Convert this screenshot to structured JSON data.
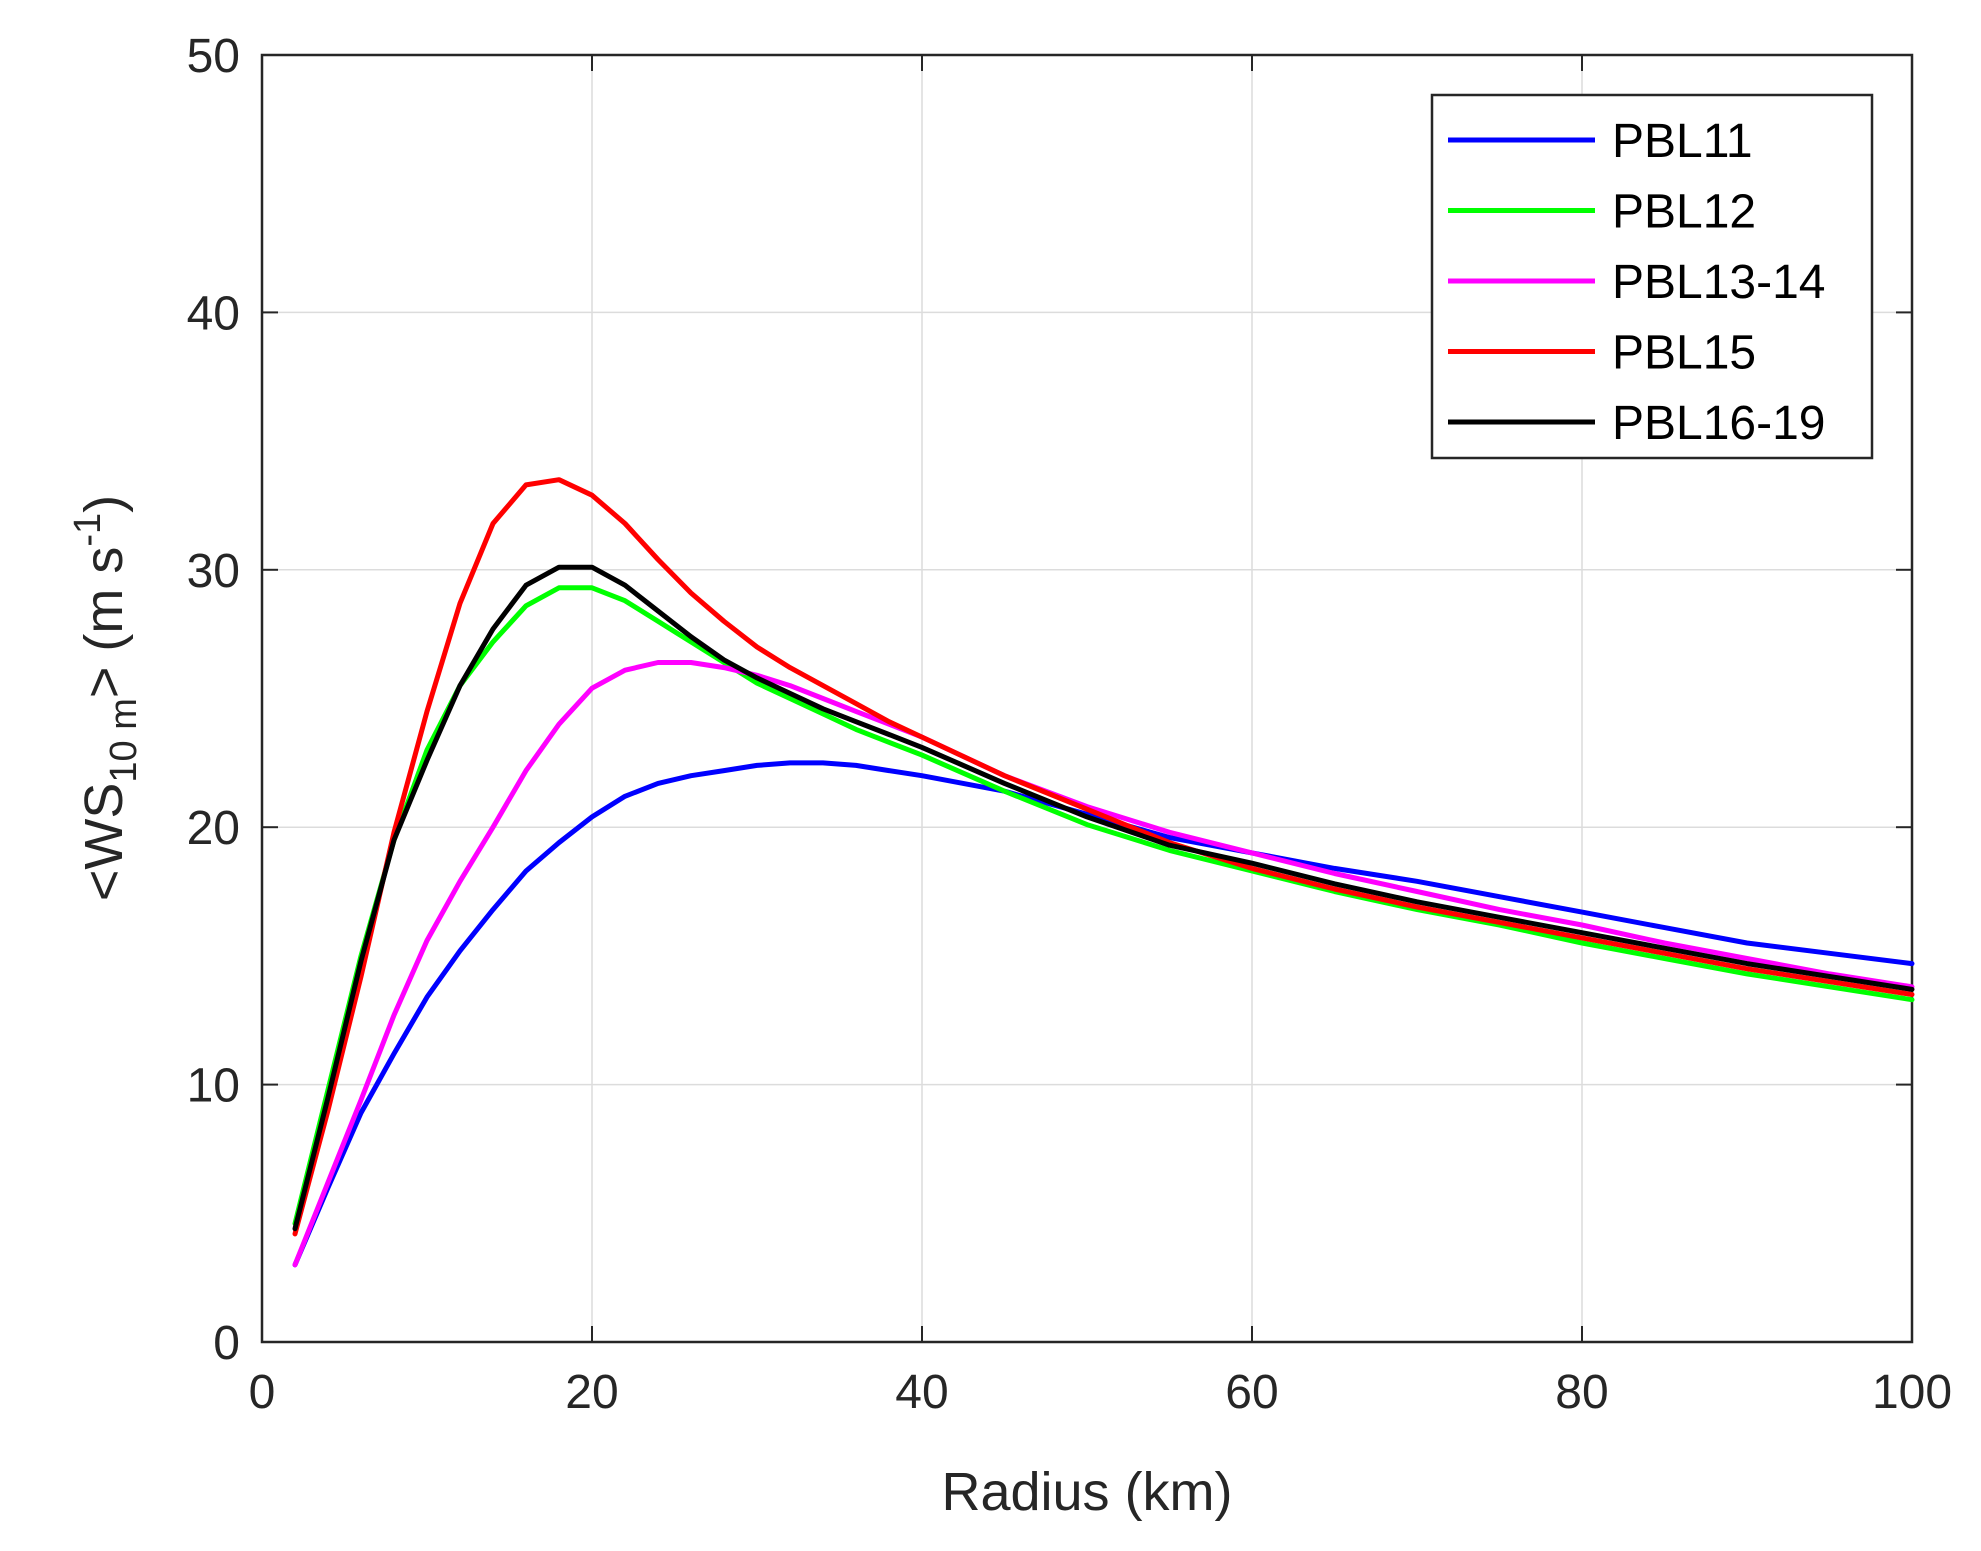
{
  "chart_data": {
    "type": "line",
    "xlabel": "Radius (km)",
    "ylabel": {
      "prefix": "<WS",
      "subscript": "10 m",
      "suffix": "> (m s",
      "superscript": "-1",
      "close": ")"
    },
    "xlim": [
      0,
      100
    ],
    "ylim": [
      0,
      50
    ],
    "xticks": [
      "0",
      "20",
      "40",
      "60",
      "80",
      "100"
    ],
    "yticks": [
      "0",
      "10",
      "20",
      "30",
      "40",
      "50"
    ],
    "grid": true,
    "legend_position": "top-right",
    "x": [
      2,
      4,
      6,
      8,
      10,
      12,
      14,
      16,
      18,
      20,
      22,
      24,
      26,
      28,
      30,
      32,
      34,
      36,
      38,
      40,
      45,
      50,
      55,
      60,
      65,
      70,
      75,
      80,
      85,
      90,
      95,
      100
    ],
    "series": [
      {
        "name": "PBL11",
        "color": "#0000ff",
        "values": [
          3.0,
          6.0,
          8.9,
          11.2,
          13.4,
          15.2,
          16.8,
          18.3,
          19.4,
          20.4,
          21.2,
          21.7,
          22.0,
          22.2,
          22.4,
          22.5,
          22.5,
          22.4,
          22.2,
          22.0,
          21.4,
          20.5,
          19.6,
          19.0,
          18.4,
          17.9,
          17.3,
          16.7,
          16.1,
          15.5,
          15.1,
          14.7
        ]
      },
      {
        "name": "PBL12",
        "color": "#00ff00",
        "values": [
          4.6,
          9.8,
          15.0,
          19.5,
          23.0,
          25.5,
          27.2,
          28.6,
          29.3,
          29.3,
          28.8,
          28.0,
          27.2,
          26.4,
          25.6,
          25.0,
          24.4,
          23.8,
          23.3,
          22.8,
          21.4,
          20.1,
          19.1,
          18.3,
          17.5,
          16.8,
          16.2,
          15.5,
          14.9,
          14.3,
          13.8,
          13.3
        ]
      },
      {
        "name": "PBL13-14",
        "color": "#ff00ff",
        "values": [
          3.0,
          6.2,
          9.4,
          12.7,
          15.6,
          17.9,
          20.0,
          22.2,
          24.0,
          25.4,
          26.1,
          26.4,
          26.4,
          26.2,
          25.9,
          25.5,
          25.0,
          24.5,
          24.0,
          23.5,
          22.0,
          20.8,
          19.8,
          19.0,
          18.2,
          17.5,
          16.8,
          16.2,
          15.5,
          14.9,
          14.3,
          13.8
        ]
      },
      {
        "name": "PBL15",
        "color": "#ff0000",
        "values": [
          4.2,
          9.0,
          14.2,
          19.8,
          24.5,
          28.7,
          31.8,
          33.3,
          33.5,
          32.9,
          31.8,
          30.4,
          29.1,
          28.0,
          27.0,
          26.2,
          25.5,
          24.8,
          24.1,
          23.5,
          22.0,
          20.7,
          19.4,
          18.4,
          17.6,
          16.9,
          16.3,
          15.7,
          15.1,
          14.5,
          14.0,
          13.5
        ]
      },
      {
        "name": "PBL16-19",
        "color": "#000000",
        "values": [
          4.4,
          9.5,
          14.8,
          19.5,
          22.6,
          25.5,
          27.7,
          29.4,
          30.1,
          30.1,
          29.4,
          28.4,
          27.4,
          26.5,
          25.8,
          25.2,
          24.6,
          24.1,
          23.6,
          23.1,
          21.7,
          20.4,
          19.3,
          18.6,
          17.8,
          17.1,
          16.5,
          15.9,
          15.3,
          14.7,
          14.2,
          13.7
        ]
      }
    ]
  }
}
